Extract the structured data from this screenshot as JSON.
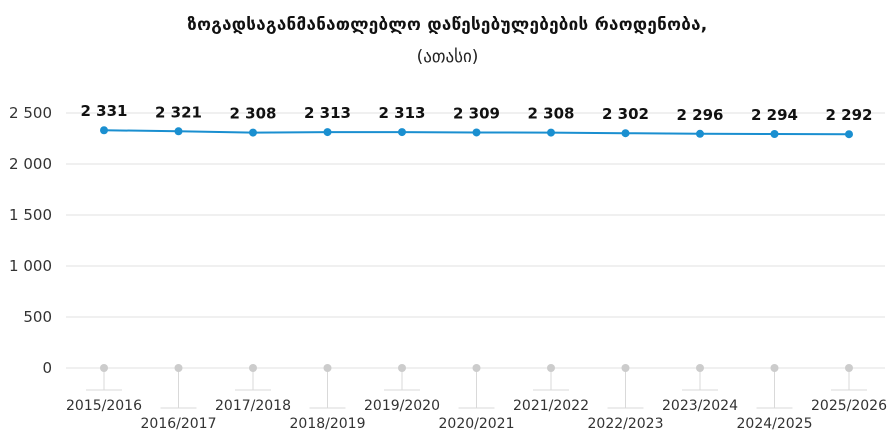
{
  "chart_data": {
    "type": "line",
    "title": "ზოგადსაგანმანათლებლო დაწესებულებების რაოდენობა,",
    "subtitle": "(ათასი)",
    "categories": [
      "2015/2016",
      "2016/2017",
      "2017/2018",
      "2018/2019",
      "2019/2020",
      "2020/2021",
      "2021/2022",
      "2022/2023",
      "2023/2024",
      "2024/2025",
      "2025/2026"
    ],
    "values": [
      2331,
      2321,
      2308,
      2313,
      2313,
      2309,
      2308,
      2302,
      2296,
      2294,
      2292
    ],
    "data_labels": [
      "2 331",
      "2 321",
      "2 308",
      "2 313",
      "2 313",
      "2 309",
      "2 308",
      "2 302",
      "2 296",
      "2 294",
      "2 292"
    ],
    "yticks": [
      0,
      500,
      1000,
      1500,
      2000,
      2500
    ],
    "ytick_labels": [
      "0",
      "500",
      "1 000",
      "1 500",
      "2 000",
      "2 500"
    ],
    "ylim": [
      0,
      2500
    ],
    "grid": true,
    "colors": {
      "line": "#1a8fd0",
      "grid": "#e0e0e0",
      "baseline_marker": "#cccccc"
    }
  }
}
